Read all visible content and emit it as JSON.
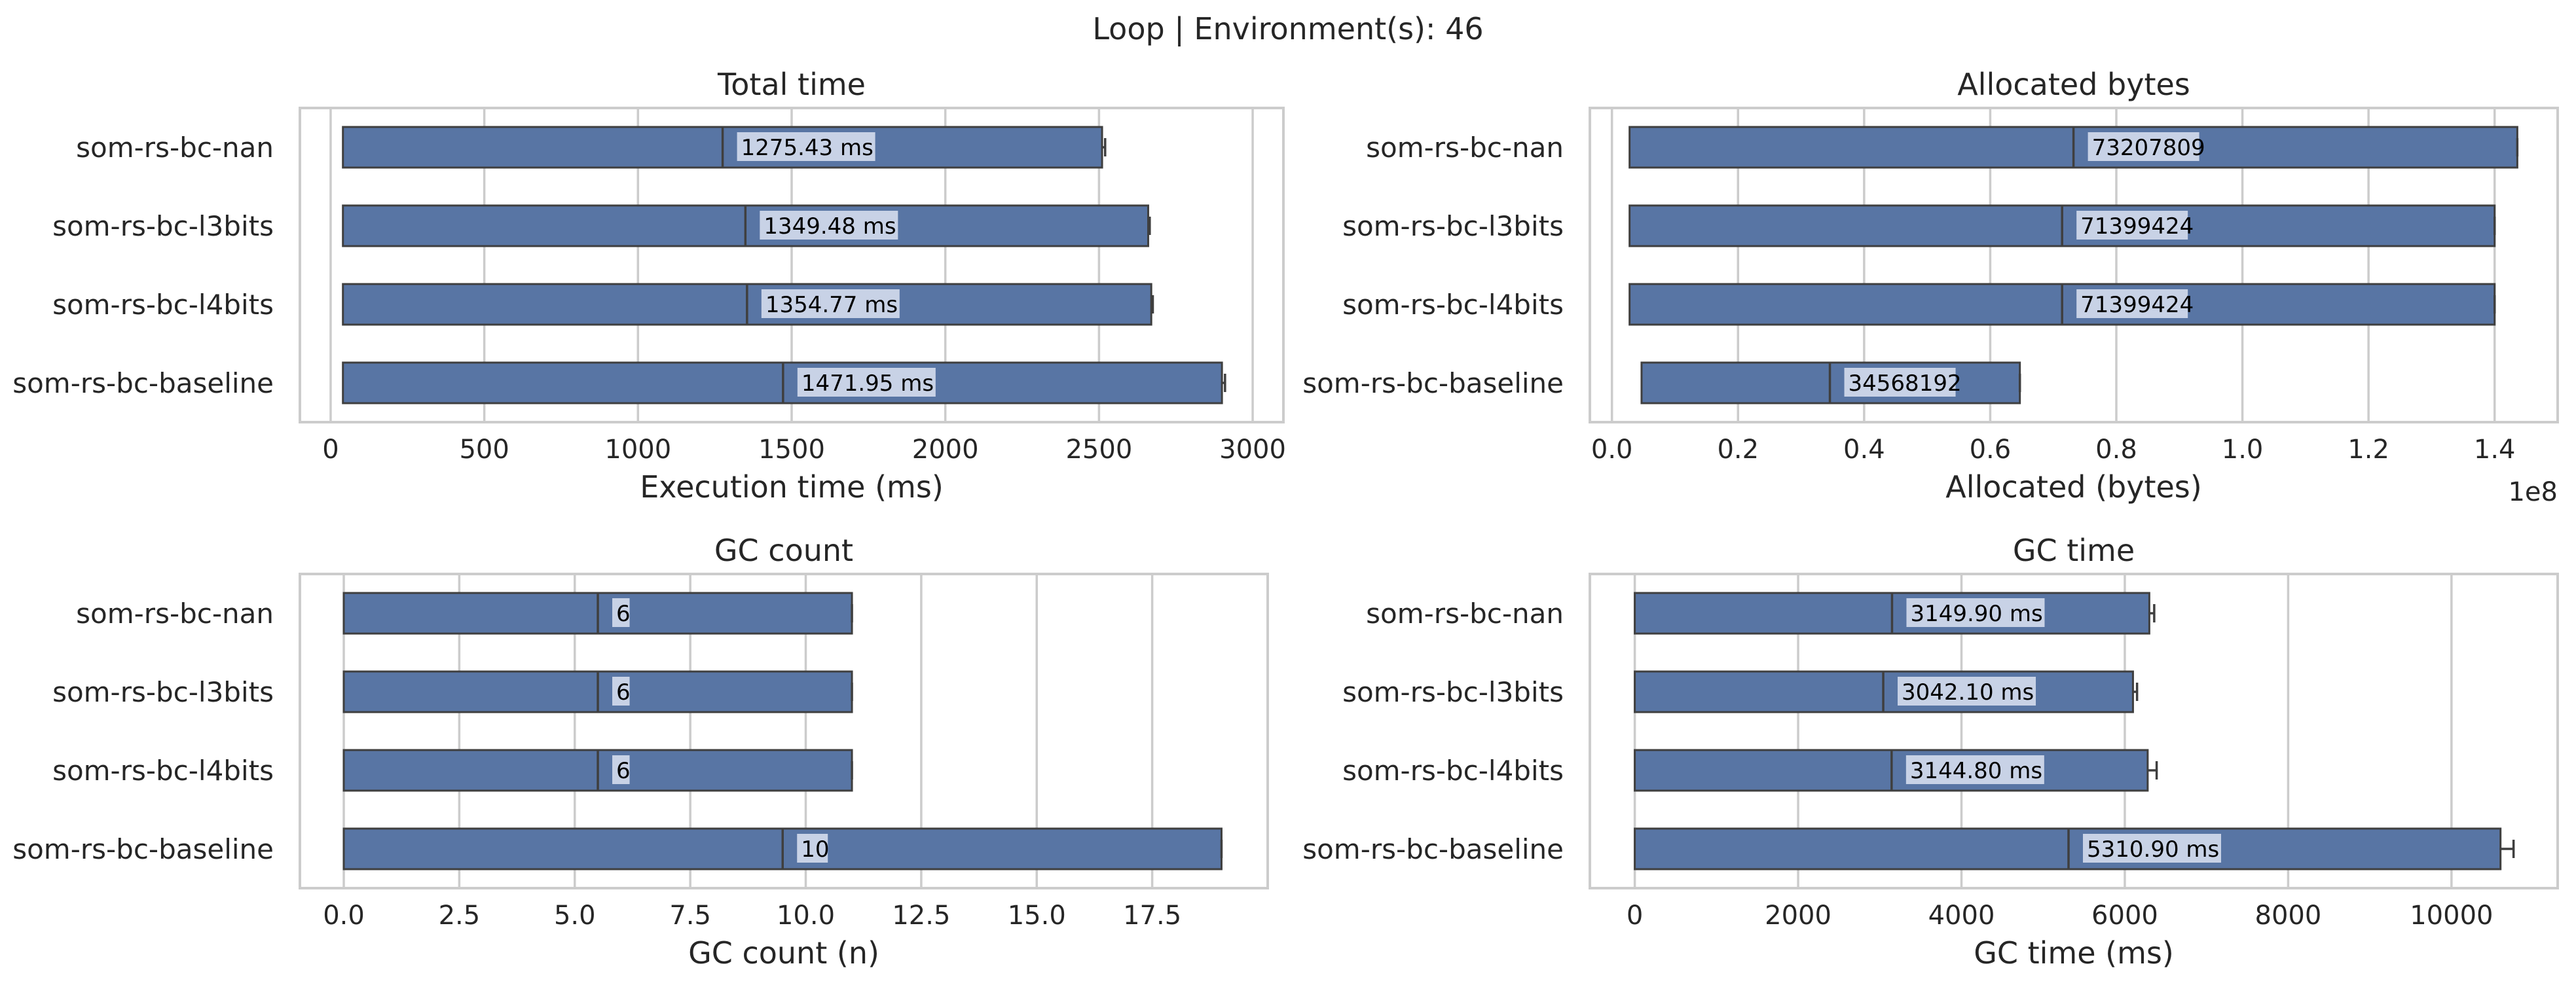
{
  "suptitle": "Loop | Environment(s): 46",
  "colors": {
    "bar": "#5875a4",
    "edge": "#3f3f3f",
    "grid": "#cccccc",
    "label_box": "#c8d2e6"
  },
  "chart_data": [
    {
      "type": "bar",
      "orientation": "horizontal",
      "title": "Total time",
      "xlabel": "Execution time (ms)",
      "categories": [
        "som-rs-bc-nan",
        "som-rs-bc-l3bits",
        "som-rs-bc-l4bits",
        "som-rs-bc-baseline"
      ],
      "bar_start": [
        40,
        40,
        40,
        40
      ],
      "bar_end": [
        2510,
        2660,
        2670,
        2900
      ],
      "error_end": [
        2520,
        2665,
        2675,
        2910
      ],
      "median": [
        1275.43,
        1349.48,
        1354.77,
        1471.95
      ],
      "value_labels": [
        "1275.43 ms",
        "1349.48 ms",
        "1354.77 ms",
        "1471.95 ms"
      ],
      "xlim": [
        -100,
        3100
      ],
      "xticks": [
        0,
        500,
        1000,
        1500,
        2000,
        2500,
        3000
      ],
      "xtick_labels": [
        "0",
        "500",
        "1000",
        "1500",
        "2000",
        "2500",
        "3000"
      ],
      "grid": true
    },
    {
      "type": "bar",
      "orientation": "horizontal",
      "title": "Allocated bytes",
      "xlabel": "Allocated (bytes)",
      "offset_label": "1e8",
      "categories": [
        "som-rs-bc-nan",
        "som-rs-bc-l3bits",
        "som-rs-bc-l4bits",
        "som-rs-bc-baseline"
      ],
      "bar_start": [
        2800000,
        2800000,
        2800000,
        4700000
      ],
      "bar_end": [
        143600000,
        140000000,
        140000000,
        64700000
      ],
      "error_end": [
        143600000,
        140000000,
        140000000,
        64700000
      ],
      "median": [
        73207809,
        71399424,
        71399424,
        34568192
      ],
      "value_labels": [
        "73207809",
        "71399424",
        "71399424",
        "34568192"
      ],
      "xlim": [
        -3500000,
        150000000
      ],
      "xticks": [
        0,
        20000000,
        40000000,
        60000000,
        80000000,
        100000000,
        120000000,
        140000000
      ],
      "xtick_labels": [
        "0.0",
        "0.2",
        "0.4",
        "0.6",
        "0.8",
        "1.0",
        "1.2",
        "1.4"
      ],
      "grid": true
    },
    {
      "type": "bar",
      "orientation": "horizontal",
      "title": "GC count",
      "xlabel": "GC count (n)",
      "categories": [
        "som-rs-bc-nan",
        "som-rs-bc-l3bits",
        "som-rs-bc-l4bits",
        "som-rs-bc-baseline"
      ],
      "bar_start": [
        0,
        0,
        0,
        0
      ],
      "bar_end": [
        11,
        11,
        11,
        19
      ],
      "error_end": [
        11,
        11,
        11,
        19
      ],
      "median": [
        5.5,
        5.5,
        5.5,
        9.5
      ],
      "value_labels": [
        "6",
        "6",
        "6",
        "10"
      ],
      "xlim": [
        -0.95,
        20
      ],
      "xticks": [
        0,
        2.5,
        5,
        7.5,
        10,
        12.5,
        15,
        17.5
      ],
      "xtick_labels": [
        "0.0",
        "2.5",
        "5.0",
        "7.5",
        "10.0",
        "12.5",
        "15.0",
        "17.5"
      ],
      "grid": true
    },
    {
      "type": "bar",
      "orientation": "horizontal",
      "title": "GC time",
      "xlabel": "GC time (ms)",
      "categories": [
        "som-rs-bc-nan",
        "som-rs-bc-l3bits",
        "som-rs-bc-l4bits",
        "som-rs-bc-baseline"
      ],
      "bar_start": [
        0,
        0,
        0,
        0
      ],
      "bar_end": [
        6300,
        6100,
        6280,
        10600
      ],
      "error_end": [
        6360,
        6150,
        6390,
        10760
      ],
      "median": [
        3149.9,
        3042.1,
        3144.8,
        5310.9
      ],
      "value_labels": [
        "3149.90 ms",
        "3042.10 ms",
        "3144.80 ms",
        "5310.90 ms"
      ],
      "xlim": [
        -550,
        11300
      ],
      "xticks": [
        0,
        2000,
        4000,
        6000,
        8000,
        10000
      ],
      "xtick_labels": [
        "0",
        "2000",
        "4000",
        "6000",
        "8000",
        "10000"
      ],
      "grid": true
    }
  ]
}
